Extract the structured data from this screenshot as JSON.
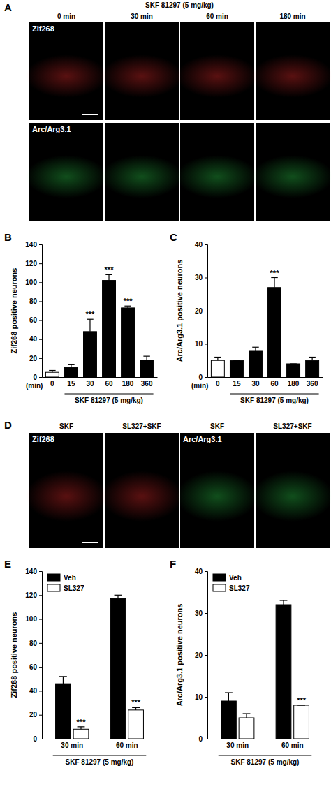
{
  "images": {
    "A": {
      "label": "A",
      "title": "SKF 81297 (5 mg/kg)",
      "columns": [
        "0 min",
        "30 min",
        "60 min",
        "180 min"
      ],
      "rows": [
        {
          "label": "Zif268",
          "color": "#ff3030"
        },
        {
          "label": "Arc/Arg3.1",
          "color": "#30e050"
        }
      ]
    },
    "D": {
      "label": "D",
      "columns": [
        "SKF",
        "SL327+SKF",
        "SKF",
        "SL327+SKF"
      ],
      "panel_labels": [
        "Zif268",
        null,
        "Arc/Arg3.1",
        null
      ],
      "colors": [
        "#ff3030",
        "#ff3030",
        "#30e050",
        "#30e050"
      ]
    }
  },
  "chart_data": [
    {
      "type": "bar",
      "annotations": [
        "B",
        "(min)"
      ],
      "ylabel": "Zif268 positive neurons",
      "xlabel": "SKF 81297 (5 mg/kg)",
      "categories": [
        "0",
        "15",
        "30",
        "60",
        "180",
        "360"
      ],
      "values": [
        5,
        10,
        48,
        102,
        73,
        18
      ],
      "errors": [
        2,
        3,
        13,
        6,
        2,
        4
      ],
      "significance": [
        null,
        null,
        "***",
        "***",
        "***",
        null
      ],
      "colors": [
        "#ffffff",
        "#000000",
        "#000000",
        "#000000",
        "#000000",
        "#000000"
      ],
      "ylim": [
        0,
        140
      ],
      "yticks": [
        0,
        20,
        40,
        60,
        80,
        100,
        120,
        140
      ],
      "grid": false
    },
    {
      "type": "bar",
      "annotations": [
        "C",
        "(min)"
      ],
      "ylabel": "Arc/Arg3.1 positive neurons",
      "xlabel": "SKF 81297 (5 mg/kg)",
      "categories": [
        "0",
        "15",
        "30",
        "60",
        "180",
        "360"
      ],
      "values": [
        5,
        5,
        8,
        27,
        4,
        5
      ],
      "errors": [
        1,
        0,
        1,
        3,
        0,
        1
      ],
      "significance": [
        null,
        null,
        null,
        "***",
        null,
        null
      ],
      "colors": [
        "#ffffff",
        "#000000",
        "#000000",
        "#000000",
        "#000000",
        "#000000"
      ],
      "ylim": [
        0,
        40
      ],
      "yticks": [
        0,
        10,
        20,
        30,
        40
      ],
      "grid": false
    },
    {
      "type": "grouped_bar",
      "annotations": [
        "E"
      ],
      "ylabel": "Zif268 positive neurons",
      "xlabel": "SKF 81297 (5 mg/kg)",
      "categories": [
        "30 min",
        "60 min"
      ],
      "series": [
        {
          "name": "Veh",
          "color": "#000000",
          "values": [
            46,
            117
          ],
          "errors": [
            6,
            3
          ],
          "significance": [
            null,
            null
          ]
        },
        {
          "name": "SL327",
          "color": "#ffffff",
          "values": [
            8,
            24
          ],
          "errors": [
            2,
            2
          ],
          "significance": [
            "***",
            "***"
          ]
        }
      ],
      "ylim": [
        0,
        140
      ],
      "yticks": [
        0,
        20,
        40,
        60,
        80,
        100,
        120,
        140
      ],
      "grid": false,
      "legend": "upper left"
    },
    {
      "type": "grouped_bar",
      "annotations": [
        "F"
      ],
      "ylabel": "Arc/Arg3.1 positive neurons",
      "xlabel": "SKF 81297 (5 mg/kg)",
      "categories": [
        "30 min",
        "60 min"
      ],
      "series": [
        {
          "name": "Veh",
          "color": "#000000",
          "values": [
            9,
            32
          ],
          "errors": [
            2,
            1
          ],
          "significance": [
            null,
            null
          ]
        },
        {
          "name": "SL327",
          "color": "#ffffff",
          "values": [
            5,
            8
          ],
          "errors": [
            1,
            0
          ],
          "significance": [
            null,
            "***"
          ]
        }
      ],
      "ylim": [
        0,
        40
      ],
      "yticks": [
        0,
        10,
        20,
        30,
        40
      ],
      "grid": false,
      "legend": "upper left"
    }
  ]
}
